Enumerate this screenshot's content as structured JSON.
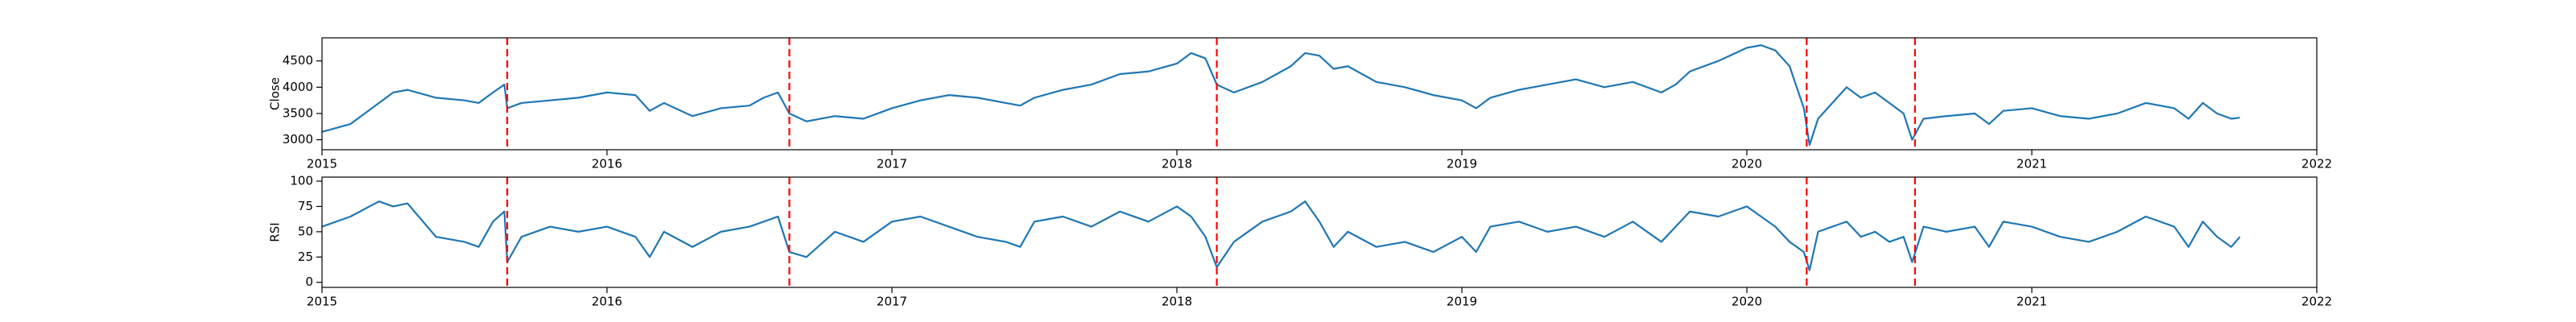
{
  "chart_data": [
    {
      "type": "line",
      "y_label": "Close",
      "x": [
        2015.0,
        2015.1,
        2015.2,
        2015.25,
        2015.3,
        2015.4,
        2015.5,
        2015.55,
        2015.6,
        2015.64,
        2015.65,
        2015.7,
        2015.8,
        2015.9,
        2016.0,
        2016.1,
        2016.15,
        2016.2,
        2016.3,
        2016.4,
        2016.5,
        2016.55,
        2016.6,
        2016.64,
        2016.7,
        2016.8,
        2016.9,
        2017.0,
        2017.1,
        2017.2,
        2017.3,
        2017.4,
        2017.45,
        2017.5,
        2017.6,
        2017.7,
        2017.8,
        2017.9,
        2018.0,
        2018.05,
        2018.1,
        2018.14,
        2018.2,
        2018.3,
        2018.4,
        2018.45,
        2018.5,
        2018.55,
        2018.6,
        2018.7,
        2018.8,
        2018.9,
        2019.0,
        2019.05,
        2019.1,
        2019.2,
        2019.3,
        2019.4,
        2019.5,
        2019.6,
        2019.7,
        2019.75,
        2019.8,
        2019.9,
        2020.0,
        2020.05,
        2020.1,
        2020.15,
        2020.2,
        2020.22,
        2020.25,
        2020.3,
        2020.35,
        2020.4,
        2020.45,
        2020.5,
        2020.55,
        2020.58,
        2020.62,
        2020.7,
        2020.8,
        2020.85,
        2020.9,
        2021.0,
        2021.1,
        2021.2,
        2021.3,
        2021.4,
        2021.5,
        2021.55,
        2021.6,
        2021.65,
        2021.7,
        2021.73
      ],
      "values": [
        3150,
        3300,
        3700,
        3900,
        3950,
        3800,
        3750,
        3700,
        3900,
        4050,
        3600,
        3700,
        3750,
        3800,
        3900,
        3850,
        3550,
        3700,
        3450,
        3600,
        3650,
        3800,
        3900,
        3500,
        3350,
        3450,
        3400,
        3600,
        3750,
        3850,
        3800,
        3700,
        3650,
        3800,
        3950,
        4050,
        4250,
        4300,
        4450,
        4650,
        4550,
        4050,
        3900,
        4100,
        4400,
        4650,
        4600,
        4350,
        4400,
        4100,
        4000,
        3850,
        3750,
        3600,
        3800,
        3950,
        4050,
        4150,
        4000,
        4100,
        3900,
        4050,
        4300,
        4500,
        4750,
        4800,
        4700,
        4400,
        3600,
        2900,
        3400,
        3700,
        4000,
        3800,
        3900,
        3700,
        3500,
        3000,
        3400,
        3450,
        3500,
        3300,
        3550,
        3600,
        3450,
        3400,
        3500,
        3700,
        3600,
        3400,
        3700,
        3500,
        3400,
        3420
      ],
      "color": "#1f77b4",
      "xlim": [
        2015,
        2022
      ],
      "xticks": [
        2015,
        2016,
        2017,
        2018,
        2019,
        2020,
        2021,
        2022
      ],
      "ylim": [
        2810,
        4940
      ],
      "yticks": [
        3000,
        3500,
        4000,
        4500
      ],
      "vlines": [
        2015.65,
        2016.64,
        2018.14,
        2020.21,
        2020.59
      ],
      "vline_color": "#ff0000"
    },
    {
      "type": "line",
      "y_label": "RSI",
      "x": [
        2015.0,
        2015.1,
        2015.2,
        2015.25,
        2015.3,
        2015.4,
        2015.5,
        2015.55,
        2015.6,
        2015.64,
        2015.65,
        2015.7,
        2015.8,
        2015.9,
        2016.0,
        2016.1,
        2016.15,
        2016.2,
        2016.3,
        2016.4,
        2016.5,
        2016.55,
        2016.6,
        2016.64,
        2016.7,
        2016.8,
        2016.9,
        2017.0,
        2017.1,
        2017.2,
        2017.3,
        2017.4,
        2017.45,
        2017.5,
        2017.6,
        2017.7,
        2017.8,
        2017.9,
        2018.0,
        2018.05,
        2018.1,
        2018.14,
        2018.2,
        2018.3,
        2018.4,
        2018.45,
        2018.5,
        2018.55,
        2018.6,
        2018.7,
        2018.8,
        2018.9,
        2019.0,
        2019.05,
        2019.1,
        2019.2,
        2019.3,
        2019.4,
        2019.5,
        2019.6,
        2019.7,
        2019.75,
        2019.8,
        2019.9,
        2020.0,
        2020.05,
        2020.1,
        2020.15,
        2020.2,
        2020.22,
        2020.25,
        2020.3,
        2020.35,
        2020.4,
        2020.45,
        2020.5,
        2020.55,
        2020.58,
        2020.62,
        2020.7,
        2020.8,
        2020.85,
        2020.9,
        2021.0,
        2021.1,
        2021.2,
        2021.3,
        2021.4,
        2021.5,
        2021.55,
        2021.6,
        2021.65,
        2021.7,
        2021.73
      ],
      "values": [
        55,
        65,
        80,
        75,
        78,
        45,
        40,
        35,
        60,
        70,
        20,
        45,
        55,
        50,
        55,
        45,
        25,
        50,
        35,
        50,
        55,
        60,
        65,
        30,
        25,
        50,
        40,
        60,
        65,
        55,
        45,
        40,
        35,
        60,
        65,
        55,
        70,
        60,
        75,
        65,
        45,
        15,
        40,
        60,
        70,
        80,
        60,
        35,
        50,
        35,
        40,
        30,
        45,
        30,
        55,
        60,
        50,
        55,
        45,
        60,
        40,
        55,
        70,
        65,
        75,
        65,
        55,
        40,
        30,
        12,
        50,
        55,
        60,
        45,
        50,
        40,
        45,
        20,
        55,
        50,
        55,
        35,
        60,
        55,
        45,
        40,
        50,
        65,
        55,
        35,
        60,
        45,
        35,
        45
      ],
      "color": "#1f77b4",
      "xlim": [
        2015,
        2022
      ],
      "xticks": [
        2015,
        2016,
        2017,
        2018,
        2019,
        2020,
        2021,
        2022
      ],
      "ylim": [
        -5,
        104
      ],
      "yticks": [
        0,
        25,
        50,
        75,
        100
      ],
      "vlines": [
        2015.65,
        2016.64,
        2018.14,
        2020.21,
        2020.59
      ],
      "vline_color": "#ff0000"
    }
  ]
}
